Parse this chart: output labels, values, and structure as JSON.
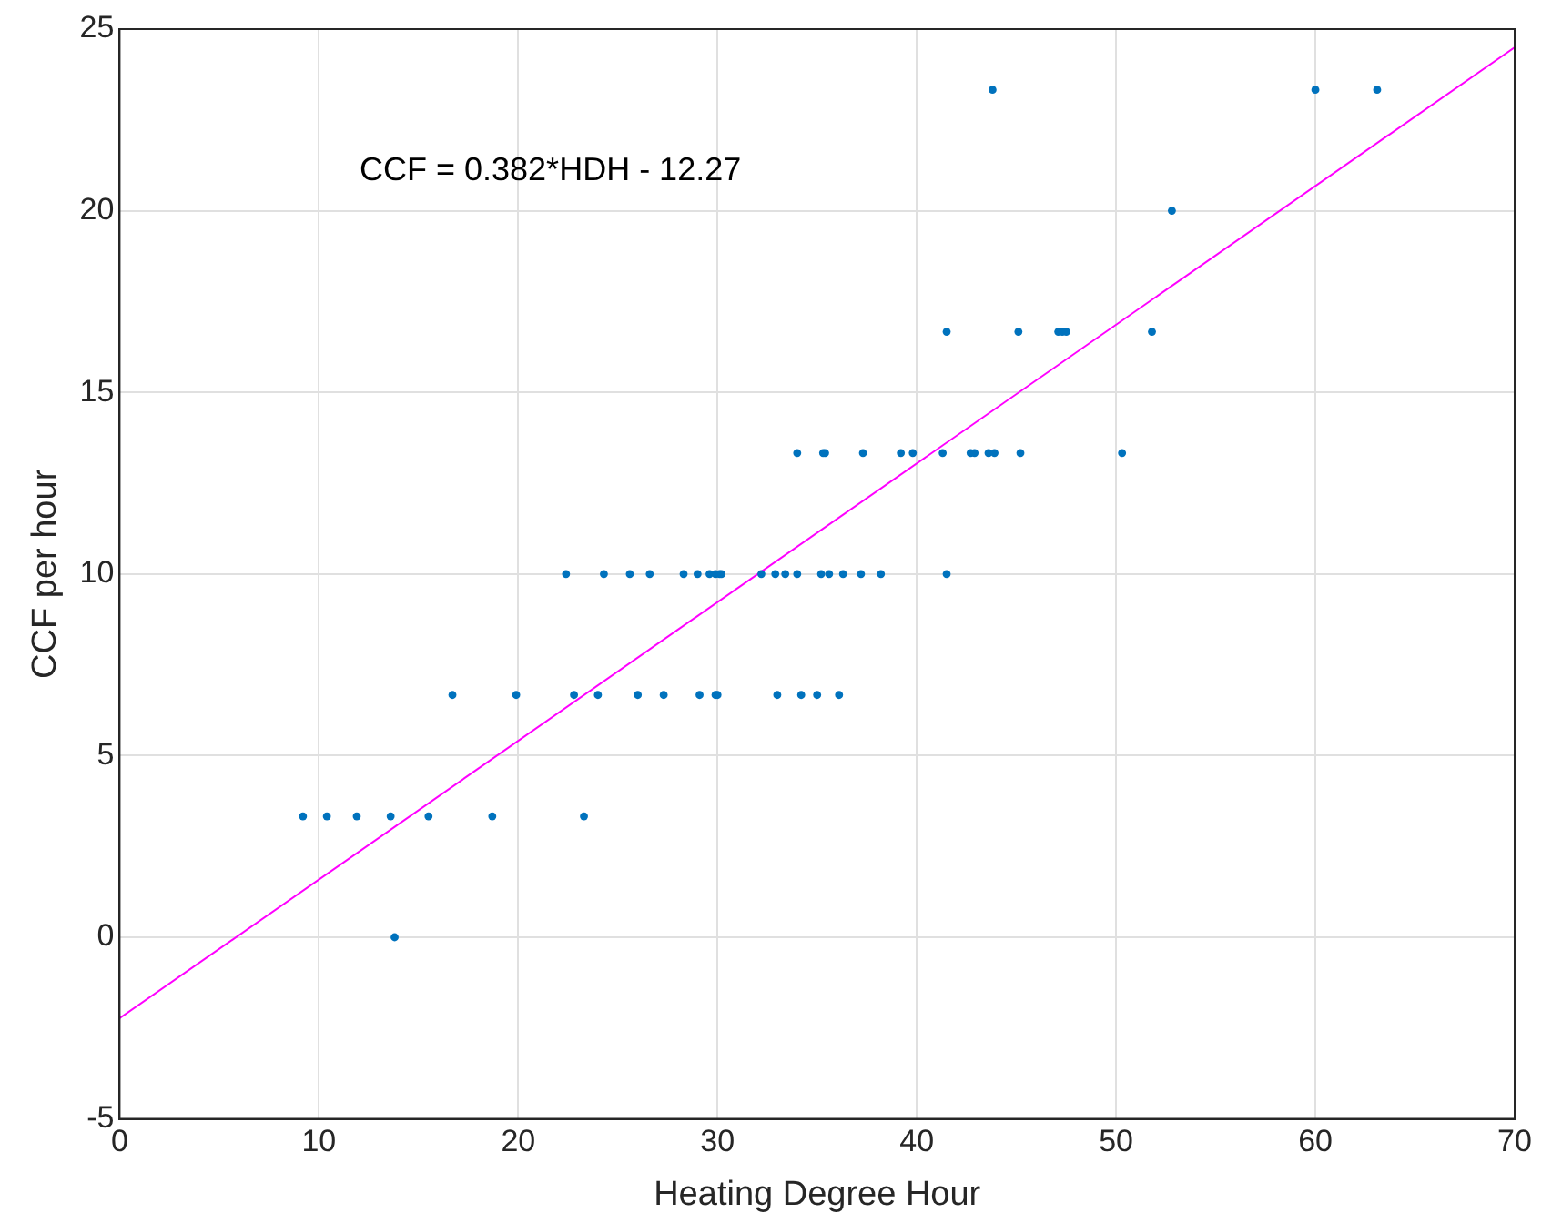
{
  "chart_data": {
    "type": "scatter",
    "xlabel": "Heating Degree Hour",
    "ylabel": "CCF per hour",
    "annotations": [
      "CCF = 0.382*HDH - 12.27"
    ],
    "xlim": [
      0,
      70
    ],
    "xticks": [
      0,
      10,
      20,
      30,
      40,
      50,
      60,
      70
    ],
    "ylim": [
      -5,
      25
    ],
    "yticks": [
      -5,
      0,
      5,
      10,
      15,
      20,
      25
    ],
    "grid": true,
    "legend": false,
    "marker": "circle",
    "series": [
      {
        "color": "#0072bd",
        "type": "scatter",
        "x": [
          13.8,
          9.2,
          10.4,
          11.9,
          13.6,
          15.5,
          18.7,
          23.3,
          16.7,
          19.9,
          22.8,
          24.0,
          26.0,
          27.3,
          29.1,
          29.9,
          30.0,
          33.0,
          34.2,
          35.0,
          36.1,
          22.4,
          24.3,
          25.6,
          26.6,
          28.3,
          29.0,
          29.6,
          29.9,
          30.1,
          30.2,
          32.2,
          32.9,
          33.4,
          34.0,
          35.2,
          35.6,
          36.3,
          37.2,
          38.2,
          41.5,
          34.0,
          35.3,
          35.4,
          37.3,
          39.2,
          39.8,
          41.3,
          42.7,
          42.9,
          43.6,
          43.9,
          45.2,
          50.3,
          41.5,
          45.1,
          47.1,
          47.3,
          47.5,
          51.8,
          52.8,
          43.8,
          60.0,
          63.1
        ],
        "values": [
          0,
          3.33,
          3.33,
          3.33,
          3.33,
          3.33,
          3.33,
          3.33,
          6.67,
          6.67,
          6.67,
          6.67,
          6.67,
          6.67,
          6.67,
          6.67,
          6.67,
          6.67,
          6.67,
          6.67,
          6.67,
          10,
          10,
          10,
          10,
          10,
          10,
          10,
          10,
          10,
          10,
          10,
          10,
          10,
          10,
          10,
          10,
          10,
          10,
          10,
          10,
          13.33,
          13.33,
          13.33,
          13.33,
          13.33,
          13.33,
          13.33,
          13.33,
          13.33,
          13.33,
          13.33,
          13.33,
          13.33,
          16.67,
          16.67,
          16.67,
          16.67,
          16.67,
          16.67,
          20,
          23.33,
          23.33,
          23.33
        ]
      },
      {
        "color": "#ff00ff",
        "type": "line",
        "marker": "none",
        "x": [
          0,
          70
        ],
        "values": [
          -2.23,
          24.5
        ]
      }
    ]
  }
}
